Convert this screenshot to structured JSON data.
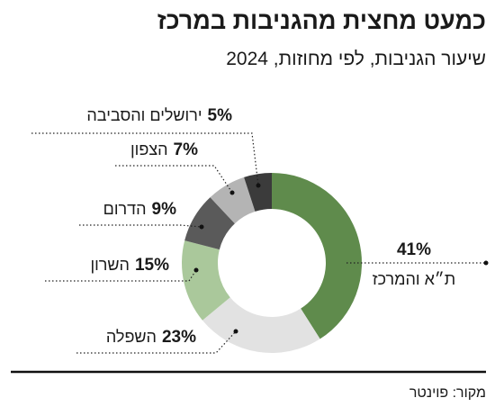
{
  "chart_data": {
    "type": "donut",
    "title": "כמעט מחצית מהגניבות במרכז",
    "subtitle": "שיעור הגניבות, לפי מחוזות, 2024",
    "source": "מקור: פוינטר",
    "categories": [
      "ת״א והמרכז",
      "השפלה",
      "השרון",
      "הדרום",
      "הצפון",
      "ירושלים והסביבה"
    ],
    "values": [
      41,
      23,
      15,
      9,
      7,
      5
    ],
    "value_labels": [
      "41%",
      "23%",
      "15%",
      "9%",
      "7%",
      "5%"
    ],
    "colors": [
      "#5f8b4c",
      "#e2e2e2",
      "#aac89b",
      "#5a5a5a",
      "#b4b4b4",
      "#3b3b3b"
    ]
  }
}
